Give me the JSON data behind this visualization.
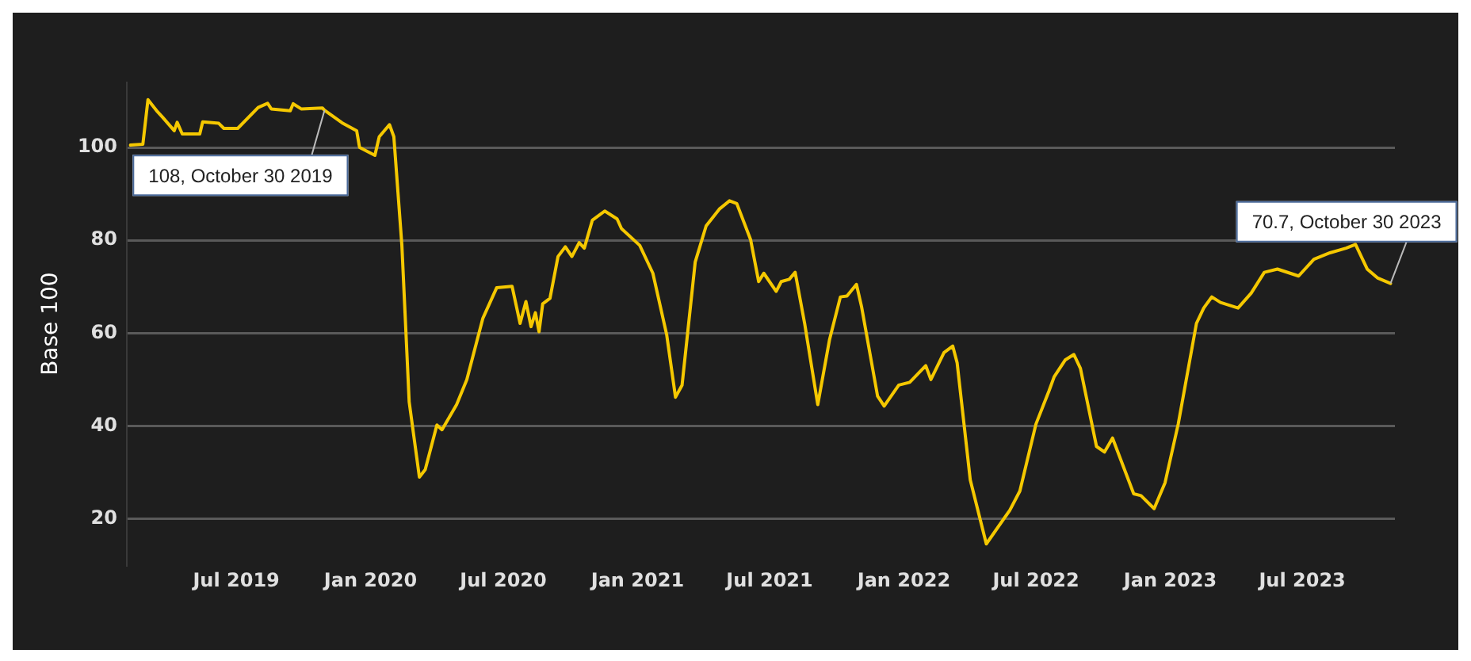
{
  "chart_data": {
    "type": "line",
    "ylabel": "Base 100",
    "x": [
      "2019-02-06",
      "2019-02-23",
      "2019-03-02",
      "2019-03-15",
      "2019-03-22",
      "2019-04-07",
      "2019-04-11",
      "2019-04-18",
      "2019-05-12",
      "2019-05-16",
      "2019-06-07",
      "2019-06-14",
      "2019-07-03",
      "2019-07-31",
      "2019-08-13",
      "2019-08-18",
      "2019-09-13",
      "2019-09-17",
      "2019-09-28",
      "2019-10-27",
      "2019-10-30",
      "2019-11-23",
      "2019-12-13",
      "2019-12-17",
      "2020-01-07",
      "2020-01-13",
      "2020-01-27",
      "2020-02-02",
      "2020-02-13",
      "2020-02-23",
      "2020-03-08",
      "2020-03-16",
      "2020-04-01",
      "2020-04-08",
      "2020-04-28",
      "2020-05-12",
      "2020-06-03",
      "2020-06-22",
      "2020-07-13",
      "2020-07-24",
      "2020-08-01",
      "2020-08-08",
      "2020-08-14",
      "2020-08-19",
      "2020-08-24",
      "2020-09-03",
      "2020-09-14",
      "2020-09-24",
      "2020-10-03",
      "2020-10-13",
      "2020-10-20",
      "2020-10-31",
      "2020-11-17",
      "2020-12-04",
      "2020-12-10",
      "2021-01-04",
      "2021-01-22",
      "2021-02-10",
      "2021-02-22",
      "2021-03-03",
      "2021-03-21",
      "2021-04-05",
      "2021-04-23",
      "2021-05-07",
      "2021-05-17",
      "2021-06-05",
      "2021-06-16",
      "2021-06-23",
      "2021-07-10",
      "2021-07-17",
      "2021-07-28",
      "2021-08-05",
      "2021-08-18",
      "2021-09-05",
      "2021-09-21",
      "2021-10-06",
      "2021-10-15",
      "2021-10-28",
      "2021-11-04",
      "2021-11-26",
      "2021-12-05",
      "2021-12-25",
      "2022-01-09",
      "2022-01-31",
      "2022-02-07",
      "2022-02-25",
      "2022-03-09",
      "2022-03-15",
      "2022-04-02",
      "2022-04-24",
      "2022-05-26",
      "2022-06-09",
      "2022-07-01",
      "2022-07-19",
      "2022-07-26",
      "2022-08-10",
      "2022-08-22",
      "2022-08-31",
      "2022-09-22",
      "2022-10-03",
      "2022-10-14",
      "2022-11-12",
      "2022-11-22",
      "2022-12-10",
      "2022-12-25",
      "2023-01-12",
      "2023-02-06",
      "2023-02-16",
      "2023-02-27",
      "2023-03-11",
      "2023-04-04",
      "2023-04-22",
      "2023-05-10",
      "2023-05-28",
      "2023-06-26",
      "2023-07-17",
      "2023-08-08",
      "2023-08-30",
      "2023-09-12",
      "2023-09-28",
      "2023-10-12",
      "2023-10-30"
    ],
    "series": [
      {
        "color": "#f5c800",
        "values": [
          100.5,
          100.7,
          110.3,
          107.7,
          106.5,
          103.6,
          105.4,
          102.9,
          102.9,
          105.5,
          105.2,
          104.1,
          104.1,
          108.6,
          109.5,
          108.3,
          107.9,
          109.4,
          108.3,
          108.5,
          108,
          105.3,
          103.6,
          100,
          98.3,
          102.3,
          104.9,
          102.3,
          78.9,
          45.2,
          29,
          30.6,
          40.2,
          39.2,
          44.6,
          50,
          63.2,
          69.8,
          70.1,
          62.1,
          66.8,
          61.4,
          64.4,
          60.3,
          66.3,
          67.5,
          76.5,
          78.6,
          76.5,
          79.5,
          78.3,
          84.3,
          86.3,
          84.6,
          82.5,
          78.9,
          72.9,
          59.6,
          46.2,
          48.8,
          75.3,
          83.1,
          86.7,
          88.5,
          87.9,
          80.1,
          71.1,
          72.9,
          69,
          71.1,
          71.6,
          73.1,
          62.1,
          44.6,
          58.5,
          67.8,
          68,
          70.5,
          65.7,
          46.4,
          44.3,
          48.8,
          49.4,
          53,
          50,
          55.8,
          57.2,
          53.6,
          28.4,
          14.6,
          21.8,
          26,
          40.4,
          47.6,
          50.6,
          54.2,
          55.4,
          52.4,
          35.6,
          34.4,
          37.4,
          25.4,
          25,
          22.2,
          27.8,
          40.4,
          62.1,
          65.4,
          67.8,
          66.6,
          65.4,
          68.6,
          73.1,
          73.8,
          72.3,
          75.9,
          77.3,
          78.3,
          79.1,
          73.8,
          71.9,
          70.7
        ]
      }
    ],
    "xlim": [
      "2019-02-01",
      "2023-11-05"
    ],
    "xticks": [
      {
        "value": "2019-07-01",
        "label": "Jul 2019"
      },
      {
        "value": "2020-01-01",
        "label": "Jan 2020"
      },
      {
        "value": "2020-07-01",
        "label": "Jul 2020"
      },
      {
        "value": "2021-01-01",
        "label": "Jan 2021"
      },
      {
        "value": "2021-07-01",
        "label": "Jul 2021"
      },
      {
        "value": "2022-01-01",
        "label": "Jan 2022"
      },
      {
        "value": "2022-07-01",
        "label": "Jul 2022"
      },
      {
        "value": "2023-01-01",
        "label": "Jan 2023"
      },
      {
        "value": "2023-07-01",
        "label": "Jul 2023"
      }
    ],
    "ylim": [
      10,
      114
    ],
    "yticks": [
      20,
      40,
      60,
      80,
      100
    ],
    "grid": "y",
    "legend": false,
    "marker": "none",
    "line_style": "solid",
    "annotations": [
      {
        "text": "108, October 30 2019",
        "x": "2019-10-30",
        "y": 108
      },
      {
        "text": "70.7, October 30 2023",
        "x": "2023-10-30",
        "y": 70.7
      }
    ]
  }
}
